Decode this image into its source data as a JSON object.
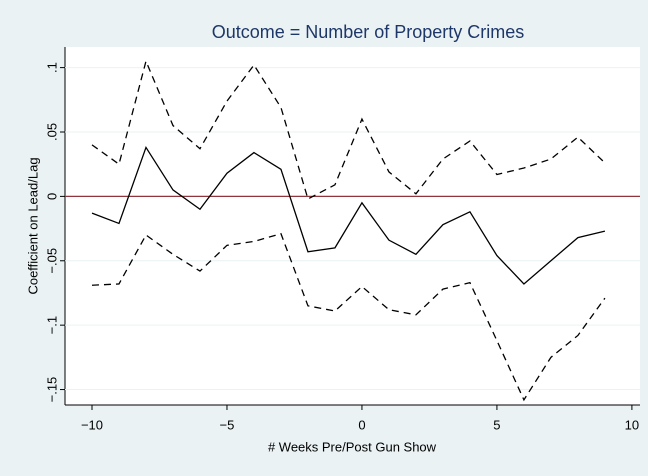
{
  "chart_data": {
    "type": "line",
    "title": "Outcome = Number of Property Crimes",
    "x_label": "# Weeks Pre/Post Gun Show",
    "y_label": "Coefficient on Lead/Lag",
    "x": [
      -10,
      -9,
      -8,
      -7,
      -6,
      -5,
      -4,
      -3,
      -2,
      -1,
      0,
      1,
      2,
      3,
      4,
      5,
      6,
      7,
      8,
      9
    ],
    "series": [
      {
        "color": "#000000",
        "dashed": false,
        "values": [
          -0.013,
          -0.021,
          0.038,
          0.005,
          -0.01,
          0.018,
          0.034,
          0.021,
          -0.043,
          -0.04,
          -0.005,
          -0.034,
          -0.045,
          -0.022,
          -0.012,
          -0.046,
          -0.068,
          -0.05,
          -0.032,
          -0.027
        ]
      },
      {
        "color": "#000000",
        "dashed": true,
        "values": [
          0.04,
          0.025,
          0.105,
          0.055,
          0.037,
          0.074,
          0.102,
          0.069,
          -0.002,
          0.009,
          0.06,
          0.019,
          0.002,
          0.029,
          0.043,
          0.017,
          0.022,
          0.029,
          0.046,
          0.026
        ]
      },
      {
        "color": "#000000",
        "dashed": true,
        "values": [
          -0.069,
          -0.068,
          -0.03,
          -0.045,
          -0.058,
          -0.038,
          -0.035,
          -0.029,
          -0.085,
          -0.089,
          -0.07,
          -0.088,
          -0.092,
          -0.072,
          -0.067,
          -0.112,
          -0.158,
          -0.125,
          -0.108,
          -0.079
        ]
      }
    ],
    "reference_line": {
      "value": 0,
      "color": "#90353b"
    },
    "xlim": [
      -11,
      10.3
    ],
    "ylim": [
      -0.162,
      0.116
    ],
    "xticks": [
      {
        "value": -10,
        "label": "−10"
      },
      {
        "value": -5,
        "label": "−5"
      },
      0,
      5,
      10
    ],
    "yticks": [
      {
        "value": -0.15,
        "label": "−.15"
      },
      {
        "value": -0.1,
        "label": "−.1"
      },
      {
        "value": -0.05,
        "label": "−.05"
      },
      0,
      {
        "value": 0.05,
        "label": ".05"
      },
      {
        "value": 0.1,
        "label": ".1"
      }
    ],
    "grid": true
  }
}
